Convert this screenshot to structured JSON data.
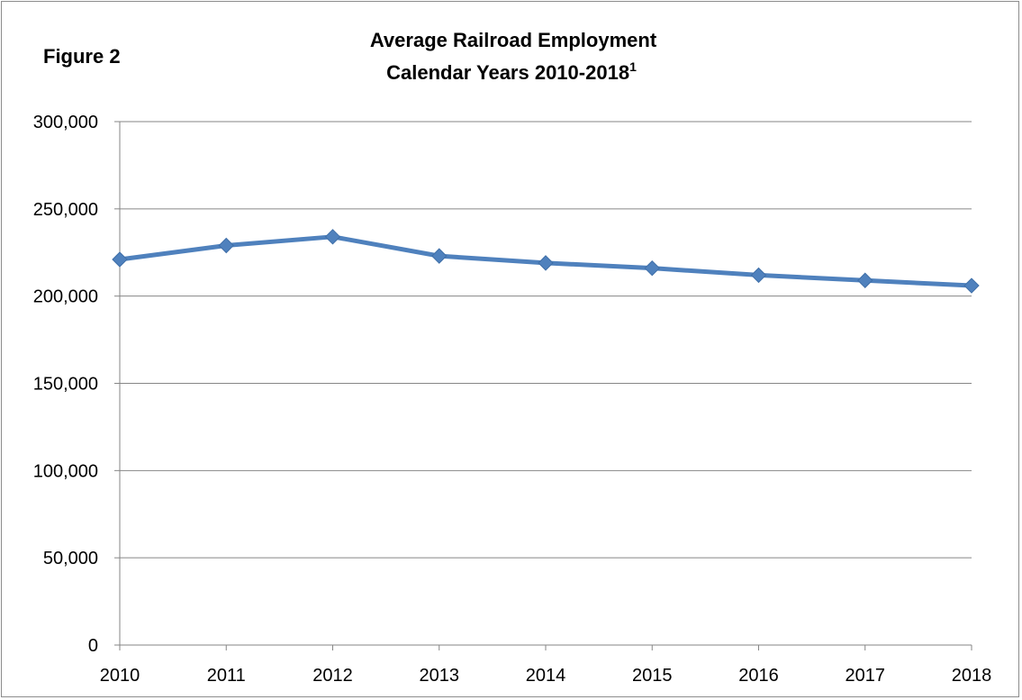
{
  "figure_label": "Figure 2",
  "chart_data": {
    "type": "line",
    "title_line1": "Average Railroad Employment",
    "title_line2": "Calendar Years 2010-2018",
    "title_superscript": "1",
    "xlabel": "",
    "ylabel": "",
    "x": [
      "2010",
      "2011",
      "2012",
      "2013",
      "2014",
      "2015",
      "2016",
      "2017",
      "2018"
    ],
    "series": [
      {
        "values": [
          221000,
          229000,
          234000,
          223000,
          219000,
          216000,
          212000,
          209000,
          206000
        ]
      }
    ],
    "ylim": [
      0,
      300000
    ],
    "yticks": [
      0,
      50000,
      100000,
      150000,
      200000,
      250000,
      300000
    ],
    "ytick_labels": [
      "0",
      "50,000",
      "100,000",
      "150,000",
      "200,000",
      "250,000",
      "300,000"
    ],
    "grid": true,
    "legend": "none",
    "colors": {
      "line": "#4f81bd",
      "marker": "#4f81bd",
      "grid": "#868686",
      "axis": "#868686"
    }
  }
}
